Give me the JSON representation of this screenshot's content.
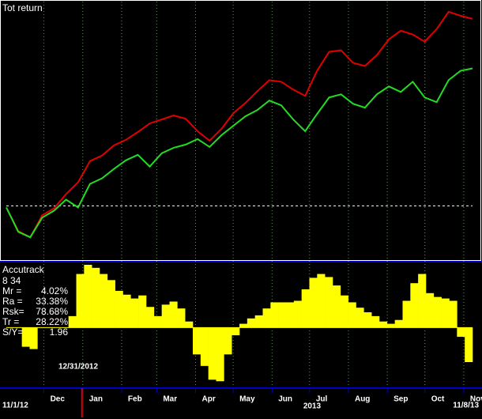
{
  "chart_data": [
    {
      "type": "line",
      "title": "Tot return",
      "ylim": [
        -70,
        260
      ],
      "series": [
        {
          "color": "#e00000",
          "values": [
            -2,
            -32,
            -40,
            -12,
            -3,
            15,
            30,
            57,
            64,
            77,
            84,
            94,
            105,
            110,
            115,
            111,
            95,
            83,
            98,
            118,
            131,
            146,
            160,
            158,
            148,
            140,
            172,
            196,
            198,
            182,
            178,
            192,
            212,
            223,
            218,
            209,
            225,
            247,
            242,
            238
          ]
        },
        {
          "color": "#22dd22",
          "values": [
            -2,
            -33,
            -40,
            -15,
            -6,
            8,
            -2,
            28,
            35,
            47,
            58,
            65,
            50,
            67,
            74,
            78,
            85,
            75,
            90,
            102,
            114,
            122,
            134,
            128,
            110,
            95,
            117,
            138,
            142,
            130,
            125,
            142,
            152,
            145,
            158,
            138,
            132,
            160,
            172,
            175
          ]
        }
      ]
    },
    {
      "type": "bar",
      "title": "Accutrack",
      "subtitle": "8 34",
      "color": "#ffff00",
      "ylim": [
        -78,
        84
      ],
      "stats": [
        {
          "label": "Mr =",
          "value": "4.02%"
        },
        {
          "label": "Ra =",
          "value": "33.38%"
        },
        {
          "label": "Rsk=",
          "value": "78.68%"
        },
        {
          "label": "Tr =",
          "value": "28.22%"
        },
        {
          "label": "S/Y=",
          "value": "1.96"
        }
      ],
      "annotation": "12/31/2012",
      "values": [
        0,
        0,
        -25,
        -28,
        0,
        0,
        0,
        0,
        15,
        70,
        82,
        78,
        70,
        62,
        48,
        43,
        38,
        42,
        27,
        15,
        30,
        34,
        25,
        8,
        -35,
        -50,
        -68,
        -70,
        -35,
        -10,
        5,
        12,
        16,
        25,
        33,
        33,
        33,
        35,
        50,
        65,
        70,
        66,
        55,
        42,
        33,
        26,
        20,
        15,
        8,
        5,
        10,
        35,
        58,
        70,
        45,
        40,
        38,
        35,
        -12,
        -45
      ],
      "xlim": [
        0,
        372
      ],
      "xticks": [
        {
          "value": 30,
          "label": "Dec"
        },
        {
          "value": 61,
          "label": "Jan"
        },
        {
          "value": 92,
          "label": "Feb"
        },
        {
          "value": 120,
          "label": "Mar"
        },
        {
          "value": 151,
          "label": "Apr"
        },
        {
          "value": 181,
          "label": "May"
        },
        {
          "value": 212,
          "label": "Jun"
        },
        {
          "value": 242,
          "label": "Jul"
        },
        {
          "value": 273,
          "label": "Aug"
        },
        {
          "value": 304,
          "label": "Sep"
        },
        {
          "value": 334,
          "label": "Oct"
        },
        {
          "value": 365,
          "label": "Nov"
        }
      ],
      "start_label": "11/1/12",
      "year_label": "2013",
      "end_label": "11/8/13"
    }
  ]
}
